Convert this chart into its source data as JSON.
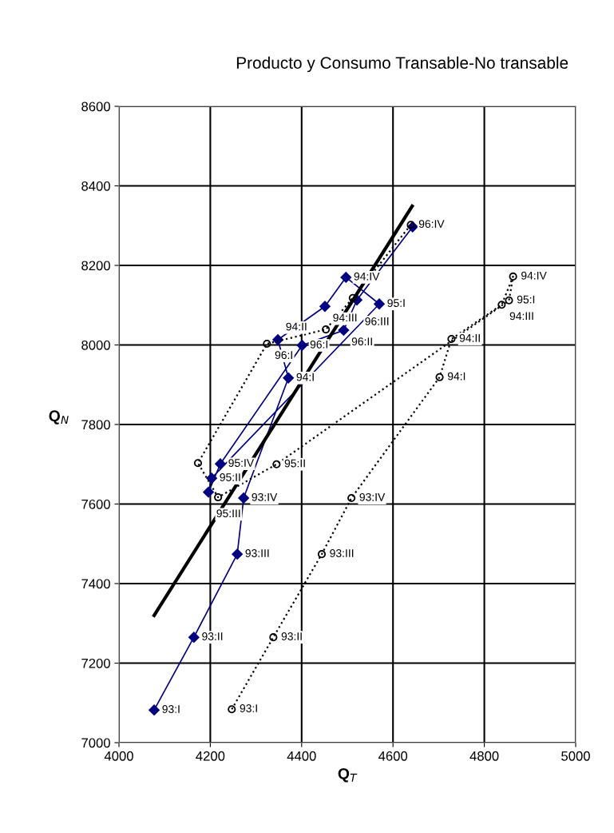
{
  "chart_data": {
    "type": "line",
    "title": "Producto y Consumo Transable-No transable",
    "xlabel": "Q$_{T}$",
    "ylabel": "Q$_{N}$",
    "xlim": [
      4000,
      5000
    ],
    "xticks": [
      4000,
      4200,
      4400,
      4600,
      4800,
      5000
    ],
    "ylim": [
      7000,
      8600
    ],
    "yticks": [
      7000,
      7200,
      7400,
      7600,
      7800,
      8000,
      8200,
      8400,
      8600
    ],
    "grid": true,
    "series": [
      {
        "color": "#000080",
        "marker": "diamond",
        "line_style": "solid",
        "x": [
          4077,
          4164,
          4259,
          4273,
          4371,
          4348,
          4451,
          4497,
          4570,
          4203,
          4196,
          4222,
          4401,
          4492,
          4521,
          4643
        ],
        "values": [
          7082,
          7265,
          7474,
          7615,
          7917,
          8013,
          8097,
          8170,
          8103,
          7665,
          7630,
          7701,
          7999,
          8037,
          8113,
          8297
        ]
      },
      {
        "color": "#000000",
        "marker": "circle",
        "line_style": "dotted",
        "x": [
          4247,
          4338,
          4444,
          4509,
          4702,
          4728,
          4838,
          4863,
          4854,
          4345,
          4217,
          4173,
          4324,
          4453,
          4512,
          4639
        ],
        "values": [
          7084,
          7265,
          7474,
          7615,
          7919,
          8015,
          8101,
          8172,
          8112,
          7700,
          7617,
          7703,
          8003,
          8039,
          8118,
          8302
        ]
      },
      {
        "color": "#000000",
        "marker": "none",
        "line_style": "solid",
        "x": [
          4077,
          4642
        ],
        "values": [
          7320,
          8349
        ]
      }
    ],
    "annotations": [
      {
        "text": "93:I",
        "x": 4077,
        "y": 7082
      },
      {
        "text": "93:II",
        "x": 4164,
        "y": 7265
      },
      {
        "text": "93:III",
        "x": 4259,
        "y": 7474
      },
      {
        "text": "93:IV",
        "x": 4273,
        "y": 7615
      },
      {
        "text": "94:I",
        "x": 4371,
        "y": 7917
      },
      {
        "text": "94:II",
        "x": 4348,
        "y": 8013
      },
      {
        "text": "94:III",
        "x": 4451,
        "y": 8097
      },
      {
        "text": "94:IV",
        "x": 4497,
        "y": 8170
      },
      {
        "text": "95:I",
        "x": 4570,
        "y": 8103
      },
      {
        "text": "95:II",
        "x": 4203,
        "y": 7665
      },
      {
        "text": "95:III",
        "x": 4196,
        "y": 7630
      },
      {
        "text": "95:IV",
        "x": 4222,
        "y": 7701
      },
      {
        "text": "96:I",
        "x": 4401,
        "y": 7999
      },
      {
        "text": "96:II",
        "x": 4492,
        "y": 8037
      },
      {
        "text": "96:III",
        "x": 4521,
        "y": 8113
      },
      {
        "text": "93:I",
        "x": 4247,
        "y": 7084
      },
      {
        "text": "93:II",
        "x": 4338,
        "y": 7265
      },
      {
        "text": "93:III",
        "x": 4444,
        "y": 7474
      },
      {
        "text": "93:IV",
        "x": 4509,
        "y": 7615
      },
      {
        "text": "94:I",
        "x": 4702,
        "y": 7919
      },
      {
        "text": "94:II",
        "x": 4728,
        "y": 8015
      },
      {
        "text": "94:III",
        "x": 4838,
        "y": 8101
      },
      {
        "text": "94:IV",
        "x": 4863,
        "y": 8172
      },
      {
        "text": "95:I",
        "x": 4854,
        "y": 8112
      },
      {
        "text": "95:II",
        "x": 4345,
        "y": 7700
      },
      {
        "text": "96:I",
        "x": 4324,
        "y": 8003
      },
      {
        "text": "96:IV",
        "x": 4639,
        "y": 8302
      }
    ]
  }
}
